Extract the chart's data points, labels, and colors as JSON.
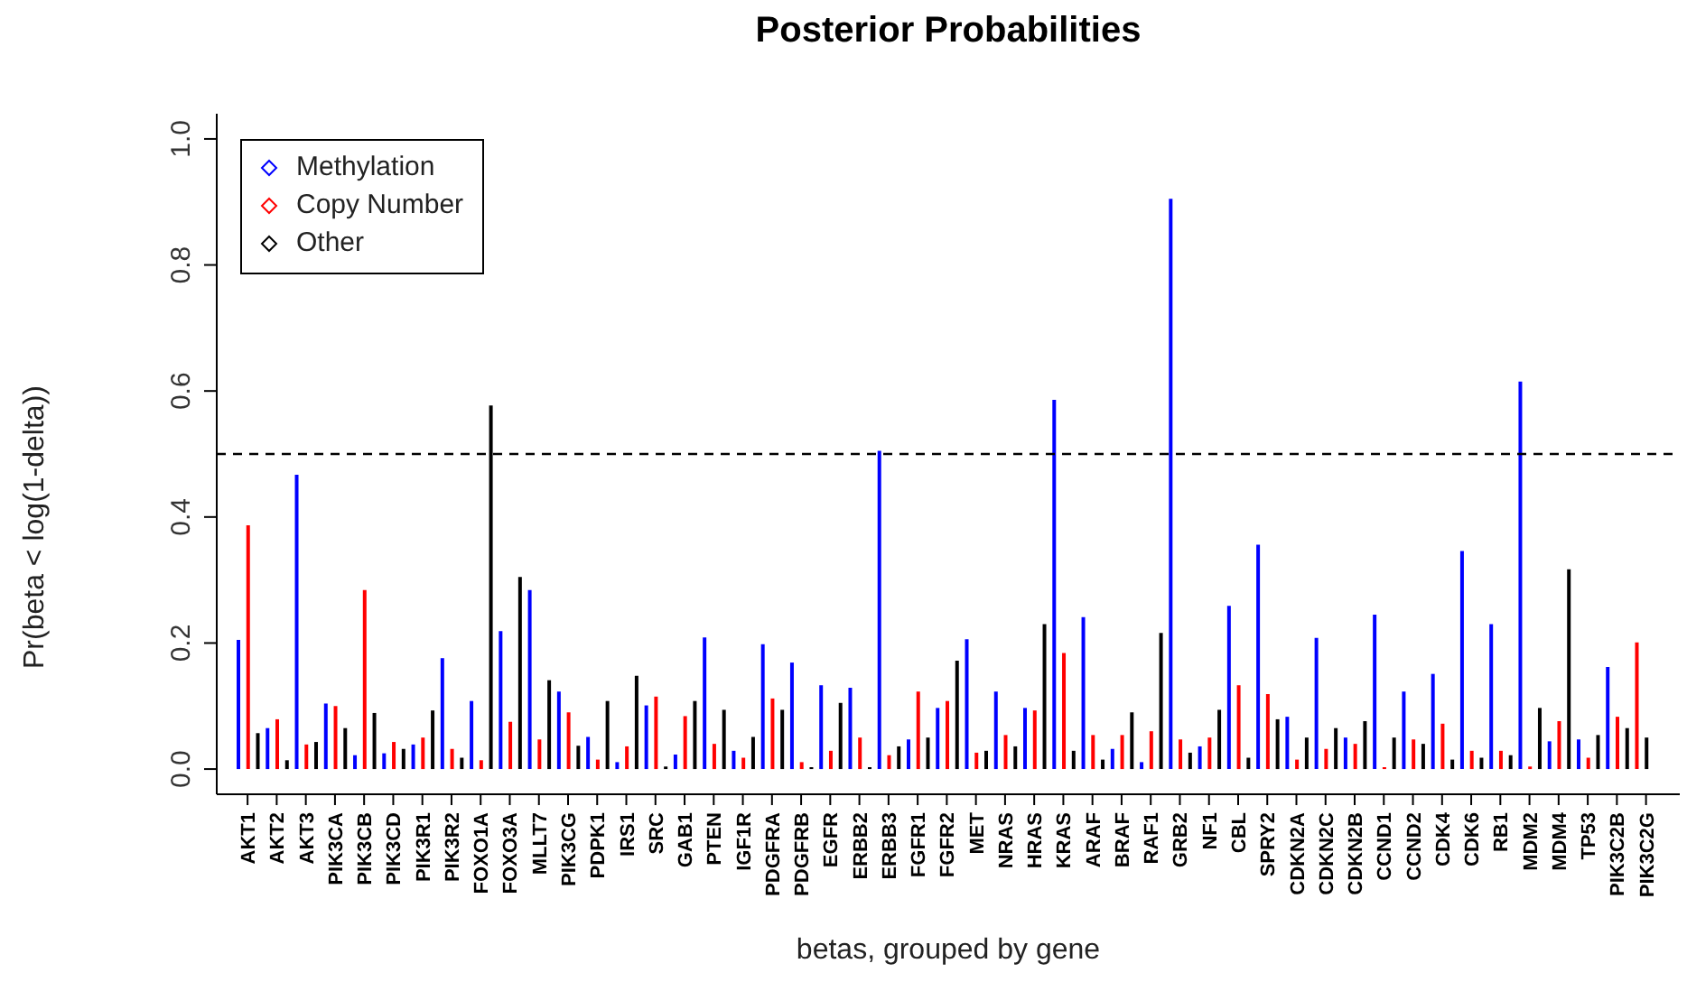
{
  "chart_data": {
    "type": "bar",
    "title": "Posterior Probabilities",
    "xlabel": "betas, grouped by gene",
    "ylabel": "Pr(beta < log(1-delta))",
    "categories": [
      null,
      "AKT1",
      null,
      null,
      "AKT2",
      null,
      null,
      "AKT3",
      null,
      null,
      "PIK3CA",
      null,
      null,
      "PIK3CB",
      null,
      null,
      "PIK3CD",
      null,
      null,
      "PIK3R1",
      null,
      null,
      "PIK3R2",
      null,
      null,
      "FOXO1A",
      null,
      null,
      "FOXO3A",
      null,
      null,
      "MLLT7",
      null,
      null,
      "PIK3CG",
      null,
      null,
      "PDPK1",
      null,
      null,
      "IRS1",
      null,
      null,
      "SRC",
      null,
      null,
      "GAB1",
      null,
      null,
      "PTEN",
      null,
      null,
      "IGF1R",
      null,
      null,
      "PDGFRA",
      null,
      null,
      "PDGFRB",
      null,
      null,
      "EGFR",
      null,
      null,
      "ERBB2",
      null,
      null,
      "ERBB3",
      null,
      null,
      "FGFR1",
      null,
      null,
      "FGFR2",
      null,
      null,
      "MET",
      null,
      null,
      "NRAS",
      null,
      null,
      "HRAS",
      null,
      null,
      "KRAS",
      null,
      null,
      "ARAF",
      null,
      null,
      "BRAF",
      null,
      null,
      "RAF1",
      null,
      null,
      "GRB2",
      null,
      null,
      "NF1",
      null,
      null,
      "CBL",
      null,
      null,
      "SPRY2",
      null,
      null,
      "CDKN2A",
      null,
      null,
      "CDKN2C",
      null,
      null,
      "CDKN2B",
      null,
      null,
      "CCND1",
      null,
      null,
      "CCND2",
      null,
      null,
      "CDK4",
      null,
      null,
      "CDK6",
      null,
      null,
      "RB1",
      null,
      null,
      "MDM2",
      null,
      null,
      "MDM4",
      null,
      null,
      "TP53",
      null,
      null,
      "PIK3C2B",
      null,
      null,
      "PIK3C2G"
    ],
    "series": [
      {
        "name": "Methylation",
        "color": "#0000ff",
        "values": [
          0.205,
          null,
          null,
          0.065,
          null,
          null,
          0.467,
          null,
          null,
          0.104,
          null,
          null,
          0.022,
          null,
          null,
          0.025,
          null,
          null,
          0.039,
          null,
          null,
          0.176,
          null,
          null,
          0.108,
          null,
          null,
          0.219,
          null,
          null,
          0.284,
          null,
          null,
          0.123,
          null,
          null,
          0.051,
          null,
          null,
          0.011,
          null,
          null,
          0.101,
          null,
          null,
          0.023,
          null,
          null,
          0.209,
          null,
          null,
          0.029,
          null,
          null,
          0.198,
          null,
          null,
          0.169,
          null,
          null,
          0.133,
          null,
          null,
          0.129,
          null,
          null,
          0.505,
          null,
          null,
          0.047,
          null,
          null,
          0.097,
          null,
          null,
          0.206,
          null,
          null,
          0.123,
          null,
          null,
          0.097,
          null,
          null,
          0.586,
          null,
          null,
          0.241,
          null,
          null,
          0.032,
          null,
          null,
          0.011,
          null,
          null,
          0.905,
          null,
          null,
          0.036,
          null,
          null,
          0.259,
          null,
          null,
          0.356,
          null,
          null,
          0.083,
          null,
          null,
          0.208,
          null,
          null,
          0.05,
          null,
          null,
          0.245,
          null,
          null,
          0.123,
          null,
          null,
          0.151,
          null,
          null,
          0.346,
          null,
          null,
          0.23,
          null,
          null,
          0.615,
          null,
          null,
          0.044,
          null,
          null,
          0.047,
          null,
          null,
          0.162,
          null,
          null,
          null,
          null
        ]
      },
      {
        "name": "Copy Number",
        "color": "#ff0000",
        "values": [
          null,
          0.387,
          null,
          null,
          0.079,
          null,
          null,
          0.039,
          null,
          null,
          0.1,
          null,
          null,
          0.284,
          null,
          null,
          0.043,
          null,
          null,
          0.05,
          null,
          null,
          0.032,
          null,
          null,
          0.014,
          null,
          null,
          0.075,
          null,
          null,
          0.047,
          null,
          null,
          0.09,
          null,
          null,
          0.015,
          null,
          null,
          0.036,
          null,
          null,
          0.115,
          null,
          null,
          0.084,
          null,
          null,
          0.04,
          null,
          null,
          0.018,
          null,
          null,
          0.112,
          null,
          null,
          0.011,
          null,
          null,
          0.029,
          null,
          null,
          0.05,
          null,
          null,
          0.022,
          null,
          null,
          0.123,
          null,
          null,
          0.108,
          null,
          null,
          0.026,
          null,
          null,
          0.054,
          null,
          null,
          0.093,
          null,
          null,
          0.184,
          null,
          null,
          0.054,
          null,
          null,
          0.054,
          null,
          null,
          0.06,
          null,
          null,
          0.047,
          null,
          null,
          0.05,
          null,
          null,
          0.133,
          null,
          null,
          0.119,
          null,
          null,
          0.015,
          null,
          null,
          0.032,
          null,
          null,
          0.04,
          null,
          null,
          0.003,
          null,
          null,
          0.047,
          null,
          null,
          0.072,
          null,
          null,
          0.029,
          null,
          null,
          0.029,
          null,
          null,
          0.004,
          null,
          null,
          0.076,
          null,
          null,
          0.018,
          null,
          null,
          0.083,
          null,
          0.201,
          null
        ]
      },
      {
        "name": "Other",
        "color": "#000000",
        "values": [
          null,
          null,
          0.057,
          null,
          null,
          0.014,
          null,
          null,
          0.043,
          null,
          null,
          0.065,
          null,
          null,
          0.089,
          null,
          null,
          0.032,
          null,
          null,
          0.093,
          null,
          null,
          0.018,
          null,
          null,
          0.577,
          null,
          null,
          0.305,
          null,
          null,
          0.141,
          null,
          null,
          0.037,
          null,
          null,
          0.108,
          null,
          null,
          0.148,
          null,
          null,
          0.004,
          null,
          null,
          0.108,
          null,
          null,
          0.094,
          null,
          null,
          0.051,
          null,
          null,
          0.094,
          null,
          null,
          0.003,
          null,
          null,
          0.105,
          null,
          null,
          0.003,
          null,
          null,
          0.036,
          null,
          null,
          0.05,
          null,
          null,
          0.172,
          null,
          null,
          0.029,
          null,
          null,
          0.036,
          null,
          null,
          0.23,
          null,
          null,
          0.029,
          null,
          null,
          0.015,
          null,
          null,
          0.09,
          null,
          null,
          0.216,
          null,
          null,
          0.026,
          null,
          null,
          0.094,
          null,
          null,
          0.018,
          null,
          null,
          0.079,
          null,
          null,
          0.05,
          null,
          null,
          0.065,
          null,
          null,
          0.076,
          null,
          null,
          0.05,
          null,
          null,
          0.04,
          null,
          null,
          0.015,
          null,
          null,
          0.018,
          null,
          null,
          0.022,
          null,
          null,
          0.097,
          null,
          null,
          0.317,
          null,
          null,
          0.054,
          null,
          null,
          0.065,
          null,
          0.05
        ]
      }
    ],
    "ylim": [
      -0.04,
      1.04
    ],
    "yticks": [
      {
        "value": 0,
        "label": "0.0"
      },
      {
        "value": 0.2,
        "label": "0.2"
      },
      {
        "value": 0.4,
        "label": "0.4"
      },
      {
        "value": 0.6,
        "label": "0.6"
      },
      {
        "value": 0.8,
        "label": "0.8"
      },
      {
        "value": 1,
        "label": "1.0"
      }
    ],
    "ref_lines": [
      {
        "axis": "y",
        "value": 0.5,
        "line_style": "dashed",
        "color": "#000000"
      }
    ],
    "legend": "top left",
    "grid": false
  }
}
